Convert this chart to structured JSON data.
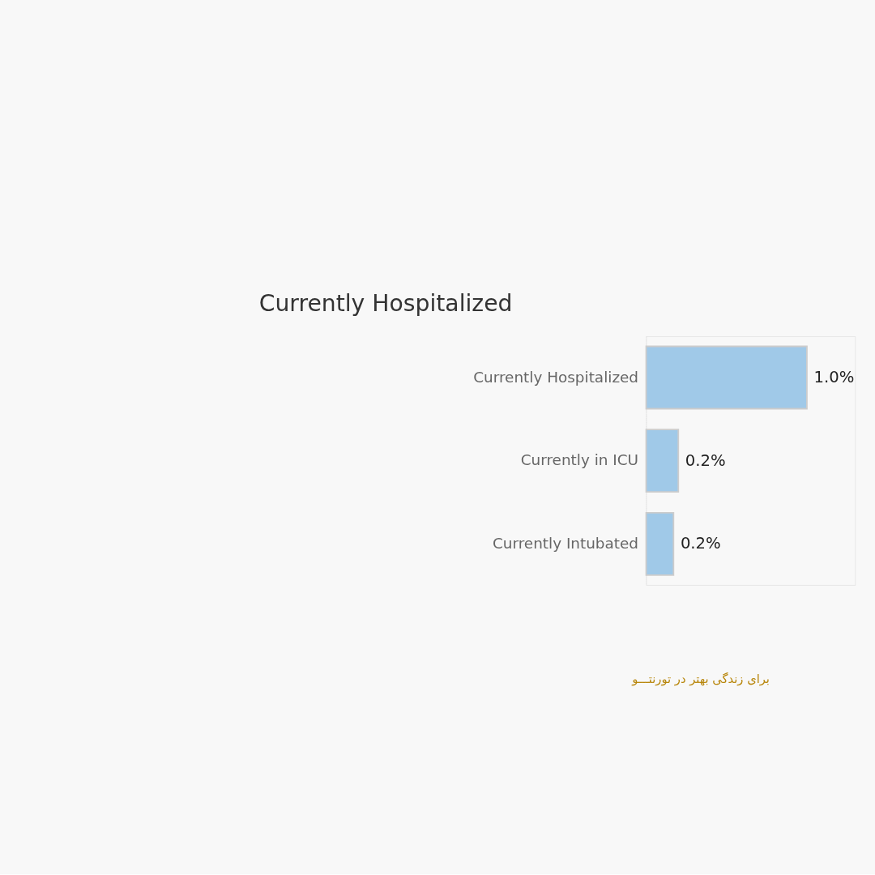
{
  "chart_data": {
    "type": "bar",
    "orientation": "horizontal",
    "title": "Currently Hospitalized",
    "categories": [
      "Currently Hospitalized",
      "Currently in ICU",
      "Currently Intubated"
    ],
    "values": [
      1.0,
      0.2,
      0.17
    ],
    "value_labels": [
      "1.0%",
      "0.2%",
      "0.2%"
    ],
    "color": "#a0c9e8",
    "annotations": [
      "برای زندگی بهتر در تورنتـــو"
    ]
  }
}
